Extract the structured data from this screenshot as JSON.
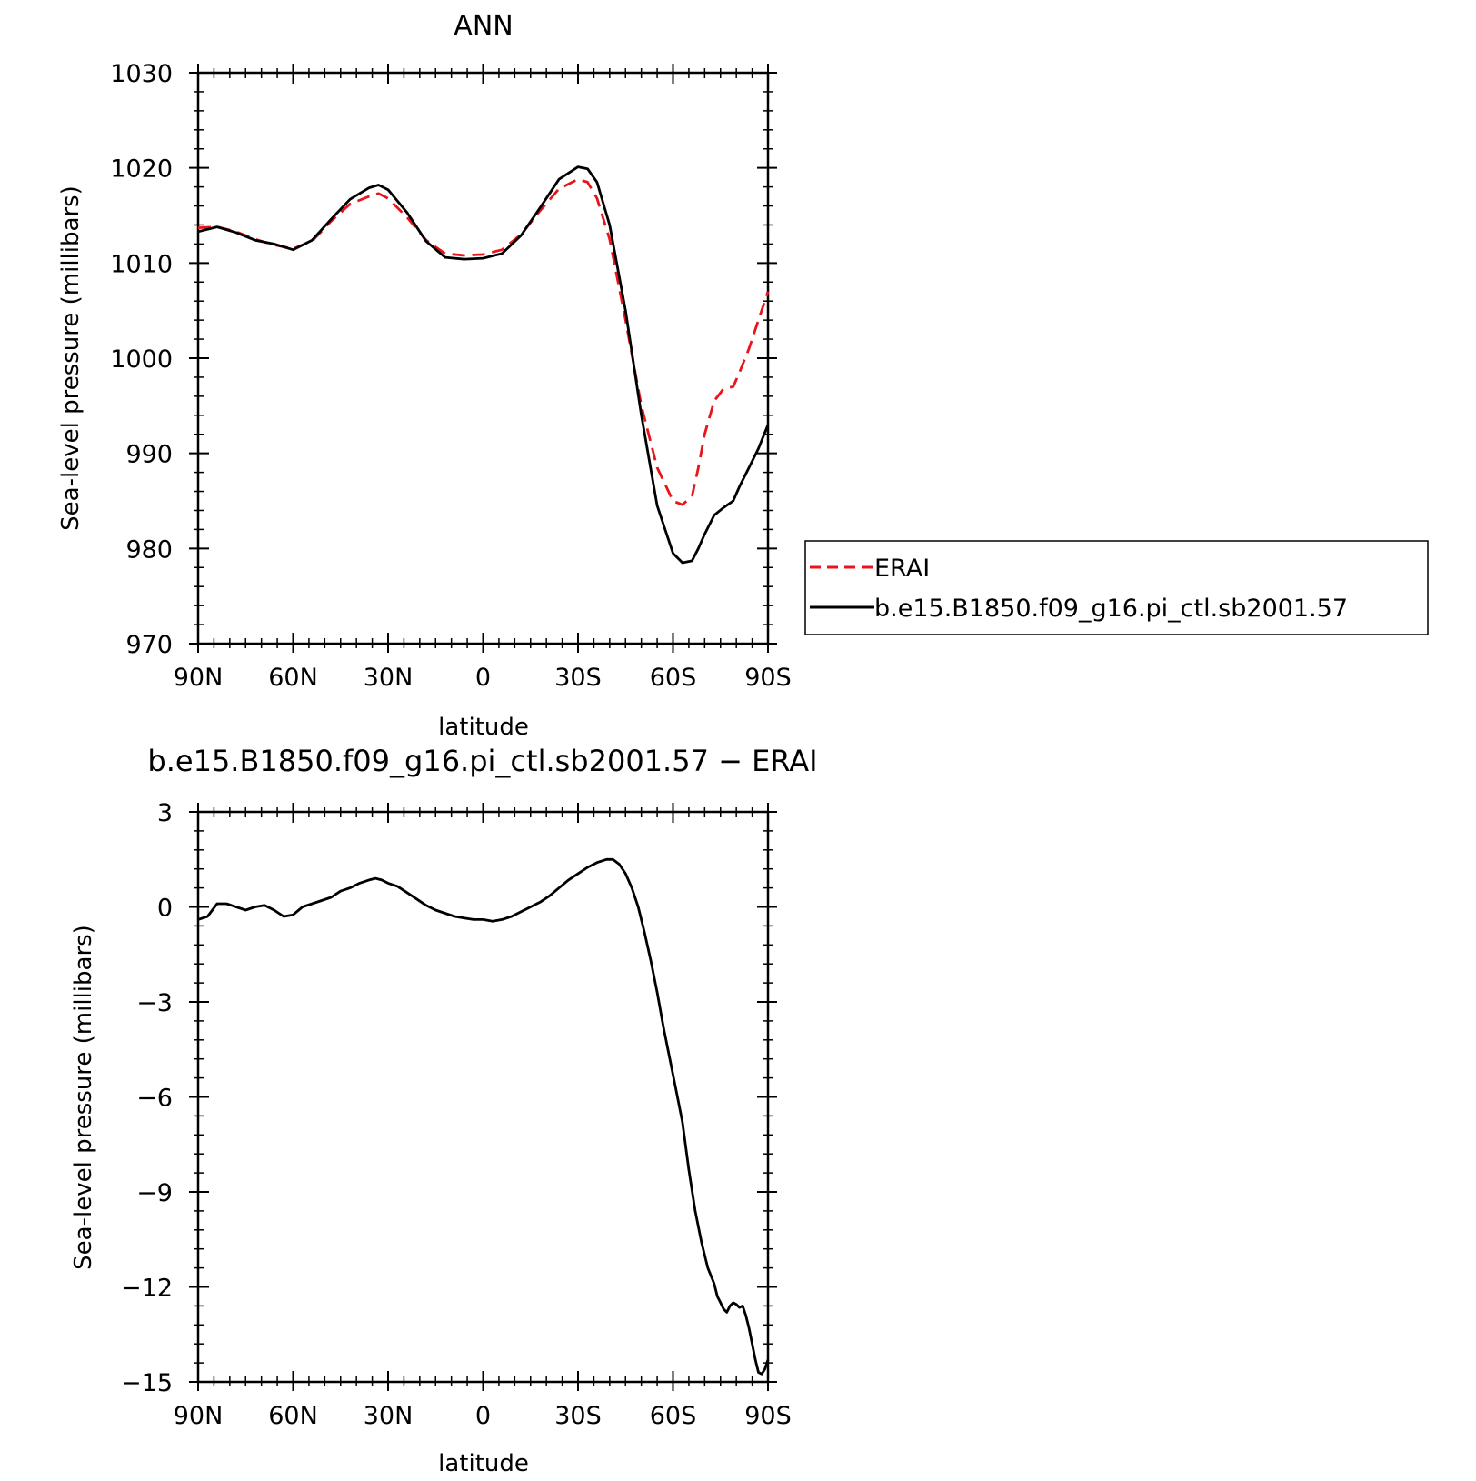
{
  "chart_data": [
    {
      "type": "line",
      "title": "ANN",
      "xlabel": "latitude",
      "ylabel": "Sea-level pressure (millibars)",
      "xlim": [
        90,
        -90
      ],
      "ylim": [
        970,
        1030
      ],
      "x_ticks": [
        90,
        60,
        30,
        0,
        -30,
        -60,
        -90
      ],
      "x_tick_labels": [
        "90N",
        "60N",
        "30N",
        "0",
        "30S",
        "60S",
        "90S"
      ],
      "y_ticks": [
        970,
        980,
        990,
        1000,
        1010,
        1020,
        1030
      ],
      "y_tick_labels": [
        "970",
        "980",
        "990",
        "1000",
        "1010",
        "1020",
        "1030"
      ],
      "grid": false,
      "legend_position": "right",
      "series": [
        {
          "name": "ERAI",
          "color": "#e8151b",
          "dash": "dashed",
          "x": [
            90,
            84,
            78,
            72,
            66,
            60,
            54,
            48,
            42,
            36,
            33,
            30,
            24,
            18,
            12,
            6,
            0,
            -6,
            -12,
            -18,
            -24,
            -30,
            -33,
            -36,
            -40,
            -45,
            -50,
            -55,
            -60,
            -63,
            -66,
            -68,
            -70,
            -73,
            -76,
            -79,
            -81,
            -84,
            -87,
            -90
          ],
          "y": [
            1013.7,
            1013.8,
            1013.3,
            1012.5,
            1011.9,
            1011.5,
            1012.3,
            1014.4,
            1016.2,
            1017.0,
            1017.3,
            1016.8,
            1014.8,
            1012.4,
            1011.0,
            1010.8,
            1010.9,
            1011.4,
            1013.0,
            1015.5,
            1017.8,
            1018.8,
            1018.5,
            1016.8,
            1012.5,
            1004.0,
            995.0,
            988.5,
            985.0,
            984.6,
            985.5,
            988.5,
            992.0,
            995.5,
            996.8,
            997.0,
            998.5,
            1001.0,
            1004.0,
            1007.0
          ]
        },
        {
          "name": "b.e15.B1850.f09_g16.pi_ctl.sb2001.57",
          "color": "#000000",
          "dash": "solid",
          "x": [
            90,
            84,
            78,
            72,
            66,
            60,
            54,
            48,
            42,
            36,
            33,
            30,
            24,
            18,
            12,
            6,
            0,
            -6,
            -12,
            -18,
            -24,
            -30,
            -33,
            -36,
            -40,
            -45,
            -50,
            -55,
            -60,
            -63,
            -66,
            -68,
            -70,
            -73,
            -76,
            -79,
            -81,
            -84,
            -87,
            -90
          ],
          "y": [
            1013.3,
            1013.8,
            1013.2,
            1012.4,
            1012.0,
            1011.4,
            1012.4,
            1014.6,
            1016.7,
            1017.9,
            1018.2,
            1017.7,
            1015.3,
            1012.3,
            1010.6,
            1010.4,
            1010.5,
            1011.0,
            1012.9,
            1015.8,
            1018.8,
            1020.1,
            1019.9,
            1018.5,
            1014.0,
            1005.0,
            994.0,
            984.5,
            979.5,
            978.5,
            978.7,
            980.0,
            981.5,
            983.5,
            984.3,
            985.0,
            986.5,
            988.5,
            990.5,
            993.0
          ]
        }
      ]
    },
    {
      "type": "line",
      "title": "b.e15.B1850.f09_g16.pi_ctl.sb2001.57  −  ERAI",
      "xlabel": "latitude",
      "ylabel": "Sea-level pressure (millibars)",
      "xlim": [
        90,
        -90
      ],
      "ylim": [
        -15,
        3
      ],
      "x_ticks": [
        90,
        60,
        30,
        0,
        -30,
        -60,
        -90
      ],
      "x_tick_labels": [
        "90N",
        "60N",
        "30N",
        "0",
        "30S",
        "60S",
        "90S"
      ],
      "y_ticks": [
        -15,
        -12,
        -9,
        -6,
        -3,
        0,
        3
      ],
      "y_tick_labels": [
        "−15",
        "−12",
        "−9",
        "−6",
        "−3",
        "0",
        "3"
      ],
      "grid": false,
      "series": [
        {
          "color": "#000000",
          "dash": "solid",
          "x": [
            90,
            87,
            84,
            81,
            78,
            75,
            72,
            69,
            66,
            63,
            60,
            57,
            54,
            51,
            48,
            45,
            42,
            39,
            36,
            34,
            32,
            30,
            27,
            24,
            21,
            18,
            15,
            12,
            9,
            6,
            3,
            0,
            -3,
            -6,
            -9,
            -12,
            -15,
            -18,
            -21,
            -24,
            -27,
            -30,
            -33,
            -36,
            -39,
            -41,
            -43,
            -45,
            -47,
            -49,
            -51,
            -53,
            -55,
            -57,
            -59,
            -61,
            -63,
            -65,
            -67,
            -69,
            -71,
            -73,
            -74,
            -75,
            -76,
            -77,
            -78,
            -79,
            -80,
            -81,
            -82,
            -83,
            -84,
            -85,
            -86,
            -87,
            -88,
            -89,
            -90
          ],
          "y": [
            -0.4,
            -0.3,
            0.1,
            0.1,
            0.0,
            -0.1,
            0.0,
            0.05,
            -0.1,
            -0.3,
            -0.25,
            0.0,
            0.1,
            0.2,
            0.3,
            0.5,
            0.6,
            0.75,
            0.85,
            0.9,
            0.85,
            0.75,
            0.65,
            0.45,
            0.25,
            0.05,
            -0.1,
            -0.2,
            -0.3,
            -0.35,
            -0.4,
            -0.4,
            -0.45,
            -0.4,
            -0.3,
            -0.15,
            0.0,
            0.15,
            0.35,
            0.6,
            0.85,
            1.05,
            1.25,
            1.4,
            1.5,
            1.5,
            1.35,
            1.05,
            0.6,
            0.0,
            -0.8,
            -1.7,
            -2.7,
            -3.8,
            -4.8,
            -5.8,
            -6.8,
            -8.3,
            -9.6,
            -10.6,
            -11.4,
            -11.9,
            -12.3,
            -12.5,
            -12.7,
            -12.8,
            -12.6,
            -12.5,
            -12.55,
            -12.65,
            -12.6,
            -12.9,
            -13.3,
            -13.8,
            -14.3,
            -14.7,
            -14.75,
            -14.6,
            -14.3
          ]
        }
      ]
    }
  ]
}
